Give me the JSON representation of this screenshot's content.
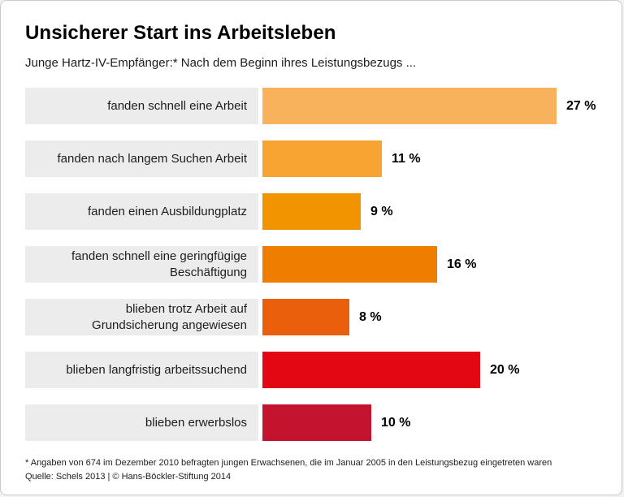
{
  "header": {
    "title": "Unsicherer Start ins Arbeitsleben",
    "subtitle": "Junge Hartz-IV-Empfänger:* Nach dem Beginn ihres Leistungsbezugs ..."
  },
  "chart_data": {
    "type": "bar",
    "orientation": "horizontal",
    "title": "Unsicherer Start ins Arbeitsleben",
    "subtitle": "Junge Hartz-IV-Empfänger:* Nach dem Beginn ihres Leistungsbezugs ...",
    "unit": "%",
    "xlim": [
      0,
      27
    ],
    "grid": false,
    "legend": false,
    "label_box_color": "#ececec",
    "rows": [
      {
        "label": "fanden schnell eine Arbeit",
        "value": 27,
        "value_label": "27 %",
        "color": "#F8B25C"
      },
      {
        "label": "fanden nach langem Suchen Arbeit",
        "value": 11,
        "value_label": "11 %",
        "color": "#F7A433"
      },
      {
        "label": "fanden einen Ausbildungplatz",
        "value": 9,
        "value_label": "9 %",
        "color": "#F29400"
      },
      {
        "label": "fanden schnell eine geringfügige\nBeschäftigung",
        "value": 16,
        "value_label": "16 %",
        "color": "#EF7D00"
      },
      {
        "label": "blieben trotz Arbeit auf\nGrundsicherung angewiesen",
        "value": 8,
        "value_label": "8 %",
        "color": "#E95F0C"
      },
      {
        "label": "blieben langfristig arbeitssuchend",
        "value": 20,
        "value_label": "20 %",
        "color": "#E30613"
      },
      {
        "label": "blieben erwerbslos",
        "value": 10,
        "value_label": "10 %",
        "color": "#C3132F"
      }
    ]
  },
  "footer": {
    "note": "* Angaben von 674 im Dezember 2010 befragten jungen Erwachsenen, die im Januar 2005 in den Leistungsbezug eingetreten waren",
    "source": "Quelle: Schels 2013 | © Hans-Böckler-Stiftung 2014"
  }
}
